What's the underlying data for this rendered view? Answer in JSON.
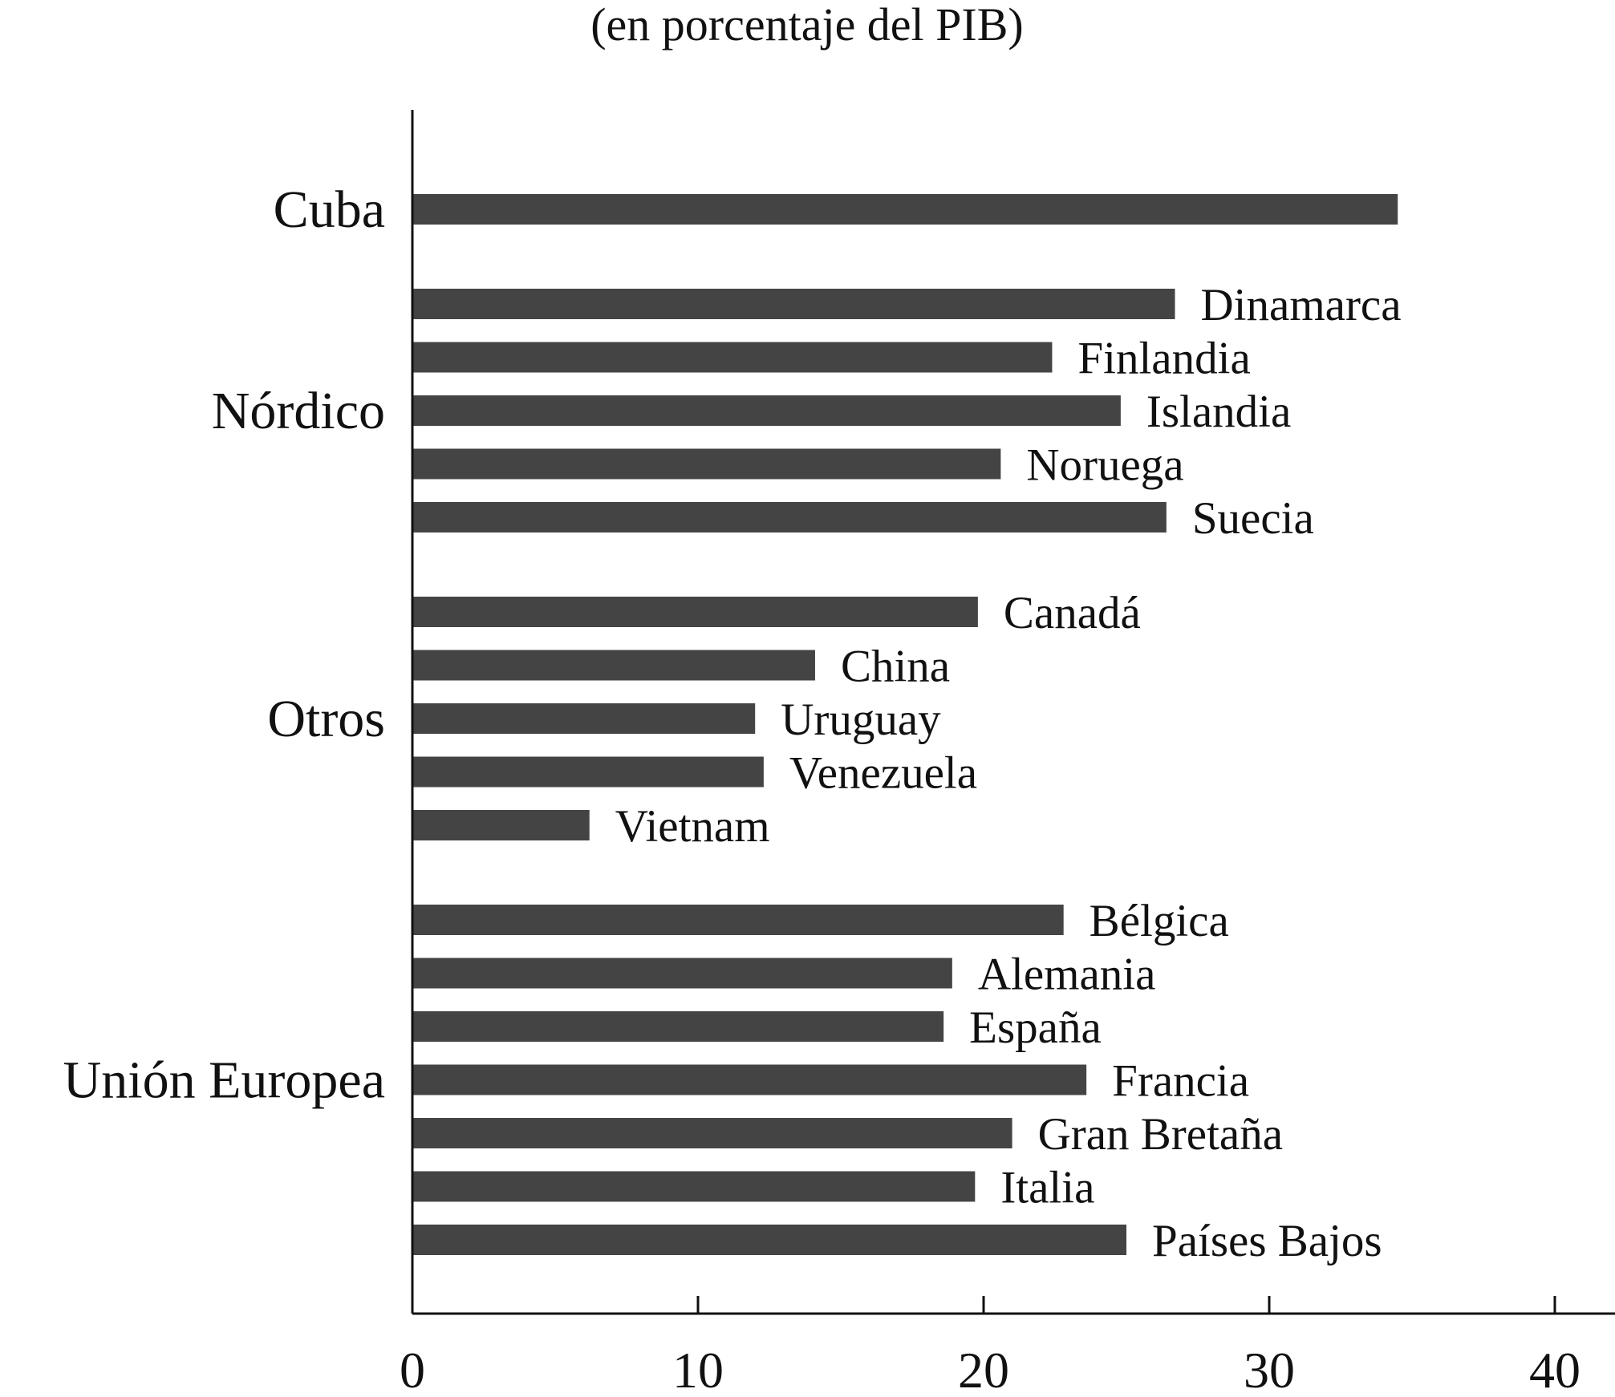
{
  "chart_data": {
    "type": "bar",
    "orientation": "horizontal",
    "subtitle": "(en porcentaje del PIB)",
    "xlabel": "",
    "ylabel": "",
    "xlim": [
      0,
      42
    ],
    "xticks": [
      0,
      10,
      20,
      30,
      40
    ],
    "grid": false,
    "legend": "none",
    "bar_color": "#444444",
    "groups": [
      {
        "name": "Cuba",
        "bars": [
          {
            "label": "",
            "value": 34.5
          }
        ]
      },
      {
        "name": "Nórdico",
        "bars": [
          {
            "label": "Dinamarca",
            "value": 26.7
          },
          {
            "label": "Finlandia",
            "value": 22.4
          },
          {
            "label": "Islandia",
            "value": 24.8
          },
          {
            "label": "Noruega",
            "value": 20.6
          },
          {
            "label": "Suecia",
            "value": 26.4
          }
        ]
      },
      {
        "name": "Otros",
        "bars": [
          {
            "label": "Canadá",
            "value": 19.8
          },
          {
            "label": "China",
            "value": 14.1
          },
          {
            "label": "Uruguay",
            "value": 12.0
          },
          {
            "label": "Venezuela",
            "value": 12.3
          },
          {
            "label": "Vietnam",
            "value": 6.2
          }
        ]
      },
      {
        "name": "Unión Europea",
        "bars": [
          {
            "label": "Bélgica",
            "value": 22.8
          },
          {
            "label": "Alemania",
            "value": 18.9
          },
          {
            "label": "España",
            "value": 18.6
          },
          {
            "label": "Francia",
            "value": 23.6
          },
          {
            "label": "Gran Bretaña",
            "value": 21.0
          },
          {
            "label": "Italia",
            "value": 19.7
          },
          {
            "label": "Países Bajos",
            "value": 25.0
          }
        ]
      }
    ]
  }
}
